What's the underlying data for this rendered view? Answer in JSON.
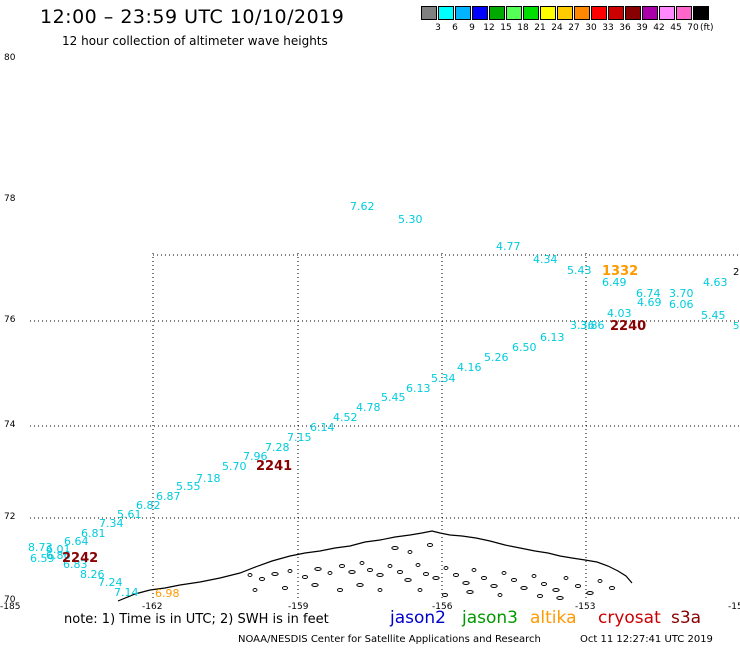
{
  "header": {
    "title": "12:00 – 23:59 UTC 10/10/2019",
    "subtitle": "12 hour collection of altimeter wave heights"
  },
  "colorbar": {
    "unit": "(ft)",
    "colors": [
      "#808080",
      "#00ffff",
      "#00b4ff",
      "#0000ff",
      "#00aa00",
      "#55ff55",
      "#00dd00",
      "#ffff00",
      "#ffcc00",
      "#ff8800",
      "#ff0000",
      "#cc0000",
      "#880000",
      "#aa00aa",
      "#ff88ff",
      "#ff66cc",
      "#000000"
    ],
    "labels": [
      "3",
      "6",
      "9",
      "12",
      "15",
      "18",
      "21",
      "24",
      "27",
      "30",
      "33",
      "36",
      "39",
      "42",
      "45",
      "70"
    ]
  },
  "map": {
    "lat_labels": [
      "80",
      "78",
      "76",
      "74",
      "72",
      "70"
    ],
    "lon_labels": [
      "-185",
      "-162",
      "-159",
      "-156",
      "-153",
      "-15"
    ],
    "edge_labels": [
      "2",
      "5"
    ]
  },
  "wave_heights": [
    "7.62",
    "5.30",
    "4.77",
    "4.34",
    "5.43",
    "6.49",
    "6.74",
    "3.70",
    "4.63",
    "4.69",
    "6.06",
    "5.45",
    "4.03",
    "3.86",
    "3.36",
    "6.13",
    "6.50",
    "5.26",
    "4.16",
    "5.34",
    "6.13",
    "5.45",
    "4.78",
    "4.52",
    "6.14",
    "7.15",
    "7.28",
    "7.96",
    "5.70",
    "7.18",
    "5.55",
    "6.87",
    "6.82",
    "5.61",
    "7.34",
    "6.81",
    "6.64",
    "6.01",
    "8.73",
    "6.86",
    "6.59",
    "6.83",
    "8.26",
    "7.24",
    "7.14",
    "6.98"
  ],
  "time_labels": [
    "1332",
    "2240",
    "2241",
    "2242"
  ],
  "colors": {
    "wave": "#00ccdd",
    "jason2": "#0000cc",
    "jason3": "#009900",
    "altika": "#ff9900",
    "cryosat": "#cc0000",
    "s3a": "#880000"
  },
  "footer": {
    "note": "note: 1) Time is in UTC; 2) SWH is in feet",
    "satellites": [
      "jason2",
      "jason3",
      "altika",
      "cryosat",
      "s3a"
    ],
    "credit": "NOAA/NESDIS Center for Satellite Applications and Research",
    "generated": "Oct 11 12:27:41 UTC 2019"
  }
}
